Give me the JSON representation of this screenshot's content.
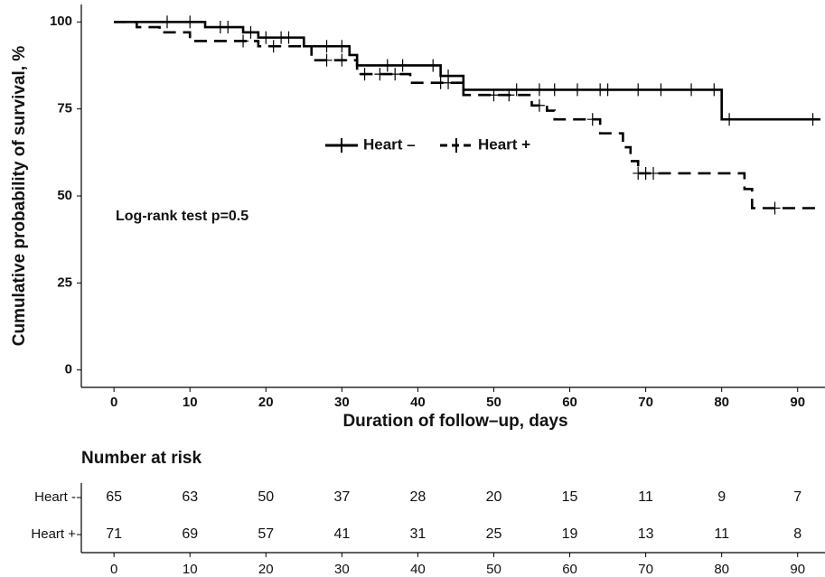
{
  "chart_data": {
    "type": "km",
    "ylabel": "Cumulative probability of survival, %",
    "xlabel": "Duration of follow–up, days",
    "annotation": "Log-rank test p=0.5",
    "xlim": [
      -4.3,
      93.6
    ],
    "ylim": [
      -5,
      105
    ],
    "xticks": [
      0,
      10,
      20,
      30,
      40,
      50,
      60,
      70,
      80,
      90
    ],
    "yticks": [
      0,
      25,
      50,
      75,
      100
    ],
    "series": [
      {
        "name": "Heart –",
        "color": "#000000",
        "line_style": "solid",
        "x": [
          0,
          12,
          17,
          19,
          25,
          31,
          32,
          43,
          46,
          80,
          93
        ],
        "values": [
          100,
          98.5,
          97,
          95.5,
          93,
          90.5,
          87.5,
          84.5,
          80.5,
          72,
          72
        ],
        "censor_x": [
          7,
          10,
          14,
          15,
          18,
          20,
          22,
          23,
          28,
          30,
          36,
          38,
          42,
          44,
          53,
          56,
          58,
          61,
          64,
          65,
          69,
          72,
          76,
          79,
          81,
          92
        ],
        "censor_y": [
          100,
          100,
          98.5,
          98.5,
          97,
          95.5,
          95.5,
          95.5,
          93,
          93,
          87.5,
          87.5,
          87.5,
          84.5,
          80.5,
          80.5,
          80.5,
          80.5,
          80.5,
          80.5,
          80.5,
          80.5,
          80.5,
          80.5,
          72,
          72
        ]
      },
      {
        "name": "Heart +",
        "color": "#000000",
        "line_style": "dashed",
        "x": [
          0,
          3,
          6,
          10,
          19,
          26,
          32,
          39,
          46,
          55,
          57,
          58,
          64,
          67,
          68,
          69,
          83,
          84,
          93
        ],
        "values": [
          100,
          98.5,
          97,
          94.5,
          93,
          89,
          85,
          82.5,
          79,
          76,
          74.5,
          72,
          68,
          64,
          60,
          56.5,
          52,
          46.5,
          46.5
        ],
        "censor_x": [
          17,
          21,
          28,
          30,
          33,
          35,
          37,
          43,
          44,
          50,
          52,
          56,
          63,
          69,
          70,
          71,
          87
        ],
        "censor_y": [
          94.5,
          93,
          89,
          89,
          85,
          85,
          85,
          82.5,
          82.5,
          79,
          79,
          76,
          72,
          56.5,
          56.5,
          56.5,
          46.5
        ]
      }
    ],
    "risk_table": {
      "title": "Number at risk",
      "rows": [
        {
          "name": "Heart -",
          "values": [
            65,
            63,
            50,
            37,
            28,
            20,
            15,
            11,
            9,
            7
          ]
        },
        {
          "name": "Heart +",
          "values": [
            71,
            69,
            57,
            41,
            31,
            25,
            19,
            13,
            11,
            8
          ]
        }
      ]
    }
  }
}
